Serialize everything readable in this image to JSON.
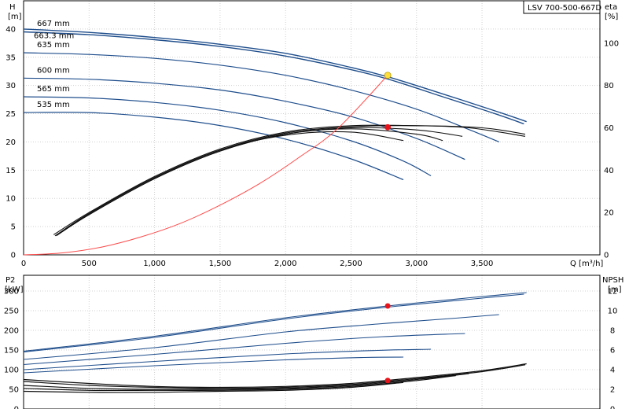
{
  "model": "LSV 700-500-667D",
  "colors": {
    "impeller": "#1f4e8c",
    "efficiency": "#111111",
    "system": "#ff4a4a",
    "dutyPoint": "#e8141b",
    "highlightPoint": "#ffde3b",
    "grid": "#d0d0d0"
  },
  "axes": {
    "h_title": [
      "H",
      "[m]"
    ],
    "eta_title": [
      "eta",
      "[%]"
    ],
    "q_title": "Q [m³/h]",
    "p2_title": [
      "P2",
      "[kW]"
    ],
    "npsh_title": [
      "NPSH",
      "[m]"
    ]
  },
  "chart_data": [
    {
      "type": "line",
      "title": "",
      "xlabel": "Q [m³/h]",
      "ylabel": "H [m]",
      "y2label": "eta [%]",
      "xlim": [
        0,
        4400
      ],
      "ylim": [
        0,
        45
      ],
      "y2lim": [
        0,
        120
      ],
      "xticks": [
        "0",
        "500",
        "1,000",
        "1,500",
        "2,000",
        "2,500",
        "3,000",
        "3,500"
      ],
      "xtickValues": [
        0,
        500,
        1000,
        1500,
        2000,
        2500,
        3000,
        3500
      ],
      "yticks": [
        0,
        5,
        10,
        15,
        20,
        25,
        30,
        35,
        40
      ],
      "y2ticks": [
        0,
        20,
        40,
        60,
        80,
        100
      ],
      "grid": true,
      "head_series": [
        {
          "name": "667 mm",
          "x": [
            0,
            500,
            1000,
            1500,
            2000,
            2500,
            2800,
            3200,
            3600,
            3840
          ],
          "y": [
            40,
            39.4,
            38.5,
            37.3,
            35.7,
            33.2,
            31.4,
            28.5,
            25.5,
            23.6
          ]
        },
        {
          "name": "663.3 mm",
          "x": [
            0,
            500,
            1000,
            1500,
            2000,
            2500,
            2800,
            3200,
            3600,
            3820
          ],
          "y": [
            39.5,
            39.0,
            38.1,
            36.9,
            35.2,
            32.8,
            31.0,
            28.0,
            25.0,
            23.2
          ]
        },
        {
          "name": "635 mm",
          "x": [
            0,
            500,
            1000,
            1500,
            2000,
            2500,
            3000,
            3400,
            3630
          ],
          "y": [
            35.8,
            35.5,
            34.8,
            33.6,
            31.8,
            29.2,
            25.8,
            22.2,
            20.0
          ]
        },
        {
          "name": "600 mm",
          "x": [
            0,
            500,
            1000,
            1500,
            2000,
            2500,
            3000,
            3370
          ],
          "y": [
            31.3,
            31.1,
            30.4,
            29.2,
            27.2,
            24.5,
            20.6,
            16.9
          ]
        },
        {
          "name": "565 mm",
          "x": [
            0,
            500,
            1000,
            1500,
            2000,
            2500,
            2900,
            3110
          ],
          "y": [
            28.0,
            27.8,
            27.0,
            25.6,
            23.4,
            20.2,
            16.6,
            14.0
          ]
        },
        {
          "name": "535 mm",
          "x": [
            0,
            500,
            1000,
            1500,
            2000,
            2500,
            2900
          ],
          "y": [
            25.2,
            25.2,
            24.4,
            22.9,
            20.5,
            17.0,
            13.3
          ]
        }
      ],
      "efficiency_series": [
        {
          "x": [
            230,
            500,
            1000,
            1500,
            2000,
            2500,
            3000,
            3400,
            3830
          ],
          "y": [
            9.5,
            20,
            37,
            50,
            58,
            61,
            61,
            60,
            56
          ]
        },
        {
          "x": [
            240,
            500,
            1000,
            1500,
            2000,
            2500,
            3000,
            3500,
            3830
          ],
          "y": [
            9,
            19.5,
            36.5,
            49.5,
            57.5,
            60.5,
            61,
            60,
            57
          ]
        },
        {
          "x": [
            250,
            500,
            1000,
            1500,
            2000,
            2500,
            3000,
            3350
          ],
          "y": [
            9,
            19,
            36,
            49,
            57,
            60,
            59,
            56
          ]
        },
        {
          "x": [
            260,
            500,
            1000,
            1500,
            2000,
            2500,
            3000,
            3200
          ],
          "y": [
            9.5,
            19,
            36,
            49,
            57,
            59.5,
            57,
            54
          ]
        },
        {
          "x": [
            270,
            500,
            1000,
            1500,
            2000,
            2500,
            2900
          ],
          "y": [
            10,
            19.5,
            36.5,
            49.5,
            56.5,
            58,
            54
          ]
        }
      ],
      "system_curve": {
        "x": [
          0,
          300,
          600,
          900,
          1200,
          1500,
          1800,
          2100,
          2400,
          2780
        ],
        "y": [
          0,
          0.35,
          1.4,
          3.2,
          5.6,
          8.8,
          12.6,
          17.2,
          22.4,
          31.8
        ]
      },
      "duty_points": [
        {
          "x": 2780,
          "y": 31.8,
          "marker": "highlight"
        },
        {
          "x": 2780,
          "y": 22.6,
          "marker": "duty"
        }
      ],
      "labels": [
        "667 mm",
        "663.3 mm",
        "635 mm",
        "600 mm",
        "565 mm",
        "535 mm"
      ]
    },
    {
      "type": "line",
      "title": "",
      "xlabel": "Q [m³/h]",
      "ylabel": "P2 [kW]",
      "y2label": "NPSH [m]",
      "xlim": [
        0,
        4400
      ],
      "ylim": [
        0,
        340
      ],
      "y2lim": [
        0,
        13.6
      ],
      "yticks": [
        0,
        50,
        100,
        150,
        200,
        250,
        300
      ],
      "y2ticks": [
        0,
        2,
        4,
        6,
        8,
        10,
        12
      ],
      "grid": true,
      "power_series": [
        {
          "x": [
            0,
            1000,
            2000,
            2780,
            3500,
            3840
          ],
          "y": [
            147,
            185,
            232,
            262,
            286,
            296
          ]
        },
        {
          "x": [
            0,
            1000,
            2000,
            2780,
            3500,
            3820
          ],
          "y": [
            145,
            182,
            229,
            259,
            282,
            292
          ]
        },
        {
          "x": [
            0,
            1000,
            2000,
            2700,
            3300,
            3630
          ],
          "y": [
            126,
            156,
            196,
            216,
            231,
            240
          ]
        },
        {
          "x": [
            0,
            1000,
            2000,
            2700,
            3370
          ],
          "y": [
            113,
            139,
            167,
            183,
            192
          ]
        },
        {
          "x": [
            0,
            1000,
            2000,
            2700,
            3110
          ],
          "y": [
            100,
            121,
            140,
            149,
            152
          ]
        },
        {
          "x": [
            0,
            1000,
            2000,
            2600,
            2900
          ],
          "y": [
            92,
            110,
            125,
            131,
            132
          ]
        }
      ],
      "npsh_series": [
        {
          "x": [
            0,
            500,
            1000,
            1500,
            2000,
            2500,
            3000,
            3500,
            3840
          ],
          "y": [
            3.0,
            2.6,
            2.3,
            2.2,
            2.3,
            2.6,
            3.2,
            3.9,
            4.6
          ]
        },
        {
          "x": [
            0,
            500,
            1000,
            1500,
            2000,
            2500,
            3000,
            3500,
            3830
          ],
          "y": [
            2.8,
            2.4,
            2.2,
            2.1,
            2.2,
            2.5,
            3.1,
            3.8,
            4.5
          ]
        },
        {
          "x": [
            0,
            500,
            1000,
            1500,
            2000,
            2500,
            3000,
            3400
          ],
          "y": [
            2.4,
            2.1,
            2.0,
            2.0,
            2.1,
            2.4,
            3.0,
            3.6
          ]
        },
        {
          "x": [
            0,
            500,
            1000,
            1500,
            2000,
            2500,
            3000,
            3300
          ],
          "y": [
            2.1,
            1.9,
            1.9,
            1.9,
            2.0,
            2.3,
            2.9,
            3.4
          ]
        },
        {
          "x": [
            0,
            500,
            1000,
            1500,
            2000,
            2500,
            2900
          ],
          "y": [
            1.8,
            1.7,
            1.7,
            1.8,
            1.9,
            2.2,
            2.7
          ]
        }
      ],
      "duty_points": [
        {
          "x": 2780,
          "y": 262,
          "axis": "P2"
        },
        {
          "x": 2780,
          "y": 2.9,
          "axis": "NPSH"
        }
      ]
    }
  ]
}
